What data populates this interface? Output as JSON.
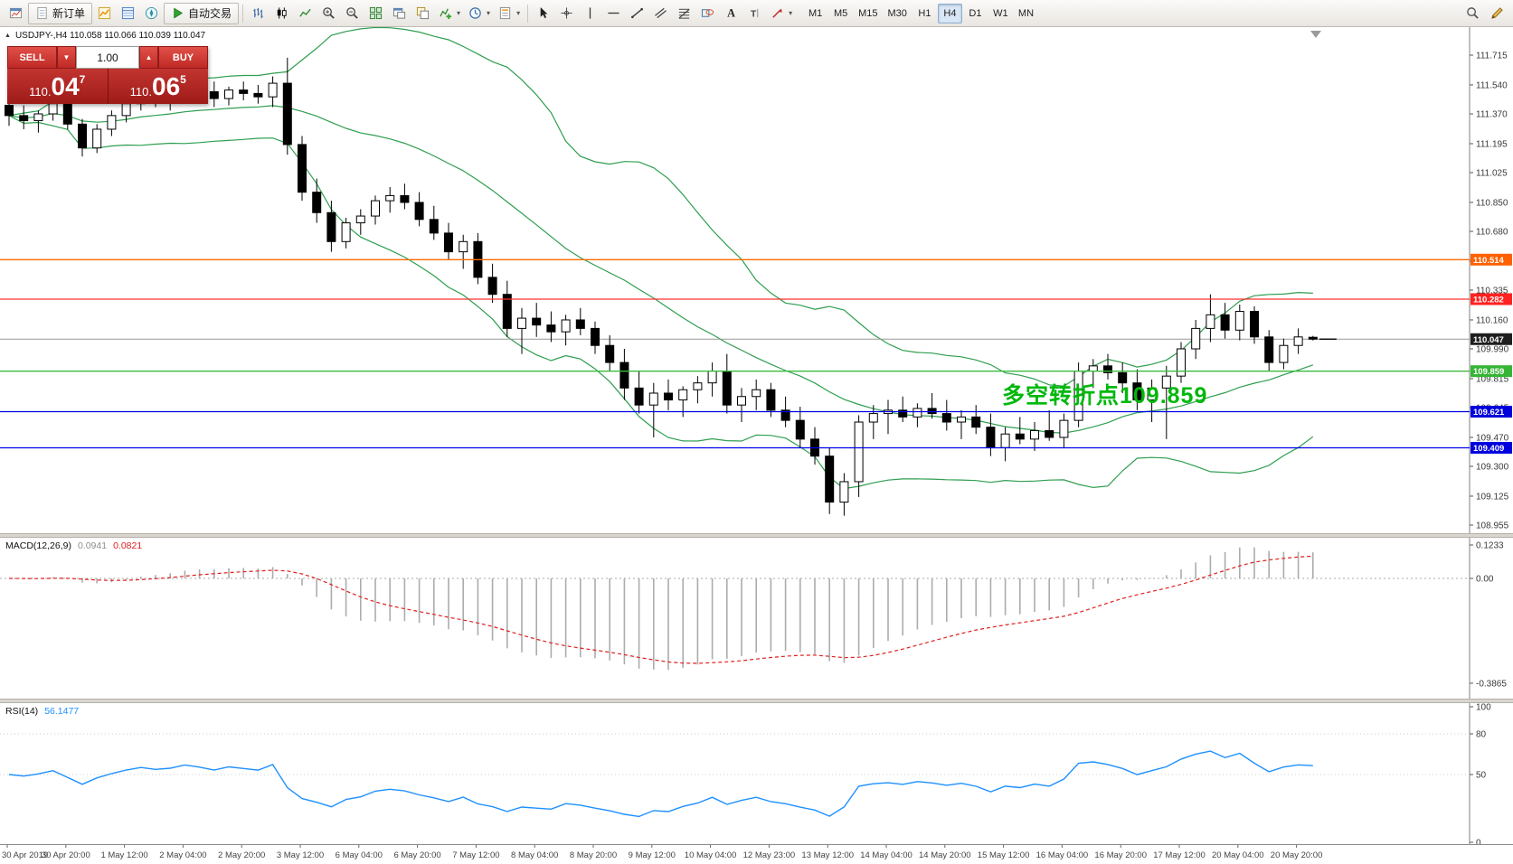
{
  "toolbar": {
    "left_groups": [
      {
        "items": [
          {
            "name": "new-chart-icon",
            "icon": "new-chart-icon"
          },
          {
            "name": "new-order-button",
            "icon": "new-order-doc-icon",
            "label": "新订单",
            "labeled": true
          },
          {
            "name": "market-watch-icon",
            "icon": "market-watch-icon"
          },
          {
            "name": "data-window-icon",
            "icon": "data-window-icon"
          },
          {
            "name": "navigator-icon",
            "icon": "navigator-icon"
          },
          {
            "name": "autotrading-button",
            "icon": "autotrading-play-icon",
            "label": "自动交易",
            "labeled": true
          }
        ]
      },
      {
        "items": [
          {
            "name": "bar-chart-button",
            "icon": "bar-chart-icon"
          },
          {
            "name": "candlestick-button",
            "icon": "candlestick-icon"
          },
          {
            "name": "line-chart-button",
            "icon": "line-chart-icon"
          },
          {
            "name": "zoom-in-button",
            "icon": "zoom-in-icon"
          },
          {
            "name": "zoom-out-button",
            "icon": "zoom-out-icon"
          },
          {
            "name": "tile-windows-button",
            "icon": "tile-windows-icon"
          },
          {
            "name": "new-window-button",
            "icon": "new-window-icon"
          },
          {
            "name": "profiles-button",
            "icon": "profiles-icon"
          },
          {
            "name": "indicators-button",
            "icon": "indicators-icon",
            "dropdown": true
          },
          {
            "name": "periods-button",
            "icon": "periods-icon",
            "dropdown": true
          },
          {
            "name": "template-button",
            "icon": "template-icon",
            "dropdown": true
          }
        ]
      },
      {
        "items": [
          {
            "name": "cursor-button",
            "icon": "cursor-icon"
          },
          {
            "name": "crosshair-button",
            "icon": "crosshair-icon"
          },
          {
            "name": "vertical-line-button",
            "icon": "vertical-line-icon"
          },
          {
            "name": "horizontal-line-button",
            "icon": "horizontal-line-icon"
          },
          {
            "name": "trendline-button",
            "icon": "trendline-icon"
          },
          {
            "name": "channel-button",
            "icon": "channel-icon"
          },
          {
            "name": "fibonacci-button",
            "icon": "fibonacci-icon"
          },
          {
            "name": "shapes-button",
            "icon": "shapes-icon"
          },
          {
            "name": "text-button",
            "icon": "text-icon"
          },
          {
            "name": "label-button",
            "icon": "label-icon"
          },
          {
            "name": "arrows-button",
            "icon": "arrows-icon",
            "dropdown": true
          }
        ]
      }
    ],
    "timeframes": [
      "M1",
      "M5",
      "M15",
      "M30",
      "H1",
      "H4",
      "D1",
      "W1",
      "MN"
    ],
    "active_timeframe": "H4",
    "right_icons": [
      {
        "name": "search-button",
        "icon": "search-icon"
      },
      {
        "name": "edit-button",
        "icon": "edit-icon"
      }
    ]
  },
  "symbol_header": {
    "toggle": "▲",
    "text": "USDJPY-,H4  110.058 110.066 110.039 110.047"
  },
  "trade_panel": {
    "sell_label": "SELL",
    "buy_label": "BUY",
    "volume": "1.00",
    "spin_down": "▼",
    "spin_up": "▲",
    "sell_price_prefix": "110.",
    "sell_price_big": "04",
    "sell_price_sup": "7",
    "buy_price_prefix": "110.",
    "buy_price_big": "06",
    "buy_price_sup": "5"
  },
  "panel_labels": {
    "macd_name": "MACD(12,26,9)",
    "macd_main": "0.0941",
    "macd_signal": "0.0821",
    "rsi_name": "RSI(14)",
    "rsi_value": "56.1477"
  },
  "chart_data": {
    "type": "candlestick",
    "symbol": "USDJPY-",
    "timeframe": "H4",
    "current_price": 110.047,
    "current_bar_ohlc": {
      "open": "110.058",
      "high": "110.066",
      "low": "110.039",
      "close": "110.047"
    },
    "y_axis": {
      "ticks": [
        "111.715",
        "111.540",
        "111.370",
        "111.195",
        "111.025",
        "110.850",
        "110.680",
        "110.505",
        "110.335",
        "110.160",
        "109.990",
        "109.815",
        "109.645",
        "109.470",
        "109.300",
        "109.125",
        "108.955"
      ]
    },
    "x_labels": [
      "30 Apr 2019",
      "30 Apr 20:00",
      "1 May 12:00",
      "2 May 04:00",
      "2 May 20:00",
      "3 May 12:00",
      "6 May 04:00",
      "6 May 20:00",
      "7 May 12:00",
      "8 May 04:00",
      "8 May 20:00",
      "9 May 12:00",
      "10 May 04:00",
      "12 May 23:00",
      "13 May 12:00",
      "14 May 04:00",
      "14 May 20:00",
      "15 May 12:00",
      "16 May 04:00",
      "16 May 20:00",
      "17 May 12:00",
      "20 May 04:00",
      "20 May 20:00"
    ],
    "bars_per_label": 4,
    "candles": [
      [
        111.42,
        111.47,
        111.3,
        111.36
      ],
      [
        111.36,
        111.42,
        111.28,
        111.33
      ],
      [
        111.33,
        111.39,
        111.26,
        111.37
      ],
      [
        111.37,
        111.45,
        111.33,
        111.43
      ],
      [
        111.43,
        111.46,
        111.28,
        111.31
      ],
      [
        111.31,
        111.34,
        111.12,
        111.17
      ],
      [
        111.17,
        111.31,
        111.14,
        111.28
      ],
      [
        111.28,
        111.39,
        111.24,
        111.36
      ],
      [
        111.36,
        111.46,
        111.32,
        111.43
      ],
      [
        111.43,
        111.51,
        111.39,
        111.48
      ],
      [
        111.48,
        111.53,
        111.41,
        111.45
      ],
      [
        111.45,
        111.5,
        111.39,
        111.47
      ],
      [
        111.47,
        111.57,
        111.43,
        111.53
      ],
      [
        111.53,
        111.61,
        111.46,
        111.5
      ],
      [
        111.5,
        111.56,
        111.41,
        111.46
      ],
      [
        111.46,
        111.53,
        111.42,
        111.51
      ],
      [
        111.51,
        111.56,
        111.45,
        111.49
      ],
      [
        111.49,
        111.54,
        111.43,
        111.47
      ],
      [
        111.47,
        111.59,
        111.41,
        111.55
      ],
      [
        111.55,
        111.7,
        111.13,
        111.19
      ],
      [
        111.19,
        111.24,
        110.86,
        110.91
      ],
      [
        110.91,
        110.99,
        110.73,
        110.79
      ],
      [
        110.79,
        110.86,
        110.56,
        110.62
      ],
      [
        110.62,
        110.76,
        110.58,
        110.73
      ],
      [
        110.73,
        110.81,
        110.66,
        110.77
      ],
      [
        110.77,
        110.89,
        110.72,
        110.86
      ],
      [
        110.86,
        110.94,
        110.79,
        110.89
      ],
      [
        110.89,
        110.96,
        110.81,
        110.85
      ],
      [
        110.85,
        110.91,
        110.71,
        110.75
      ],
      [
        110.75,
        110.83,
        110.63,
        110.67
      ],
      [
        110.67,
        110.73,
        110.51,
        110.56
      ],
      [
        110.56,
        110.66,
        110.46,
        110.62
      ],
      [
        110.62,
        110.67,
        110.37,
        110.41
      ],
      [
        110.41,
        110.49,
        110.26,
        110.31
      ],
      [
        110.31,
        110.39,
        110.06,
        110.11
      ],
      [
        110.11,
        110.23,
        109.96,
        110.17
      ],
      [
        110.17,
        110.26,
        110.06,
        110.13
      ],
      [
        110.13,
        110.21,
        110.03,
        110.09
      ],
      [
        110.09,
        110.19,
        110.01,
        110.16
      ],
      [
        110.16,
        110.23,
        110.07,
        110.11
      ],
      [
        110.11,
        110.15,
        109.96,
        110.01
      ],
      [
        110.01,
        110.07,
        109.86,
        109.91
      ],
      [
        109.91,
        109.99,
        109.69,
        109.76
      ],
      [
        109.76,
        109.86,
        109.61,
        109.66
      ],
      [
        109.66,
        109.79,
        109.47,
        109.73
      ],
      [
        109.73,
        109.81,
        109.63,
        109.69
      ],
      [
        109.69,
        109.77,
        109.59,
        109.75
      ],
      [
        109.75,
        109.83,
        109.67,
        109.79
      ],
      [
        109.79,
        109.91,
        109.71,
        109.86
      ],
      [
        109.86,
        109.96,
        109.61,
        109.66
      ],
      [
        109.66,
        109.76,
        109.56,
        109.71
      ],
      [
        109.71,
        109.81,
        109.63,
        109.75
      ],
      [
        109.75,
        109.79,
        109.59,
        109.63
      ],
      [
        109.63,
        109.71,
        109.53,
        109.57
      ],
      [
        109.57,
        109.65,
        109.41,
        109.46
      ],
      [
        109.46,
        109.53,
        109.31,
        109.36
      ],
      [
        109.36,
        109.41,
        109.02,
        109.09
      ],
      [
        109.09,
        109.26,
        109.01,
        109.21
      ],
      [
        109.21,
        109.6,
        109.12,
        109.56
      ],
      [
        109.56,
        109.66,
        109.46,
        109.61
      ],
      [
        109.61,
        109.69,
        109.49,
        109.63
      ],
      [
        109.63,
        109.71,
        109.56,
        109.59
      ],
      [
        109.59,
        109.67,
        109.53,
        109.64
      ],
      [
        109.64,
        109.73,
        109.58,
        109.61
      ],
      [
        109.61,
        109.69,
        109.51,
        109.56
      ],
      [
        109.56,
        109.63,
        109.46,
        109.59
      ],
      [
        109.59,
        109.66,
        109.49,
        109.53
      ],
      [
        109.53,
        109.61,
        109.36,
        109.41
      ],
      [
        109.41,
        109.53,
        109.33,
        109.49
      ],
      [
        109.49,
        109.59,
        109.43,
        109.46
      ],
      [
        109.46,
        109.56,
        109.39,
        109.51
      ],
      [
        109.51,
        109.63,
        109.45,
        109.47
      ],
      [
        109.47,
        109.61,
        109.41,
        109.57
      ],
      [
        109.57,
        109.91,
        109.53,
        109.86
      ],
      [
        109.86,
        109.93,
        109.76,
        109.89
      ],
      [
        109.89,
        109.96,
        109.81,
        109.85
      ],
      [
        109.85,
        109.91,
        109.73,
        109.79
      ],
      [
        109.79,
        109.87,
        109.63,
        109.69
      ],
      [
        109.69,
        109.81,
        109.56,
        109.76
      ],
      [
        109.76,
        109.89,
        109.46,
        109.83
      ],
      [
        109.83,
        110.03,
        109.79,
        109.99
      ],
      [
        109.99,
        110.16,
        109.93,
        110.11
      ],
      [
        110.11,
        110.31,
        110.03,
        110.19
      ],
      [
        110.19,
        110.26,
        110.05,
        110.1
      ],
      [
        110.1,
        110.25,
        110.04,
        110.21
      ],
      [
        110.21,
        110.24,
        110.02,
        110.06
      ],
      [
        110.06,
        110.1,
        109.86,
        109.91
      ],
      [
        109.91,
        110.05,
        109.87,
        110.01
      ],
      [
        110.01,
        110.11,
        109.96,
        110.06
      ],
      [
        110.058,
        110.066,
        110.039,
        110.047
      ]
    ],
    "levels": [
      {
        "price": 110.514,
        "color": "#FF6A00",
        "label_bg": "#FF6000",
        "width": 1.4
      },
      {
        "price": 110.282,
        "color": "#FF3030",
        "label_bg": "#FF2222",
        "width": 1.2
      },
      {
        "price": 109.859,
        "color": "#3CBB3C",
        "label_bg": "#35B435",
        "width": 1.4
      },
      {
        "price": 109.621,
        "color": "#0000E6",
        "label_bg": "#0000DC",
        "width": 1.3
      },
      {
        "price": 109.409,
        "color": "#0000E6",
        "label_bg": "#0000DC",
        "width": 1.3
      }
    ],
    "current_price_tag": {
      "label": "110.047",
      "line_color": "#999999",
      "label_bg": "#1F1F1F"
    },
    "indicators": {
      "bollinger": {
        "period": 20,
        "deviation": 2,
        "color": "#2E9E4F"
      },
      "macd": {
        "params": "12,26,9",
        "main": 0.0941,
        "signal": 0.0821,
        "scale": [
          "0.1233",
          "0.00",
          "-0.3865"
        ],
        "histogram_color": "#ACACAC",
        "signal_color": "#E02020"
      },
      "rsi": {
        "period": 14,
        "value": 56.1477,
        "scale": [
          "100",
          "80",
          "50",
          "0"
        ],
        "color": "#1E90FF"
      }
    },
    "annotation": {
      "text": "多空转折点109.859",
      "color": "#00B80C"
    }
  }
}
